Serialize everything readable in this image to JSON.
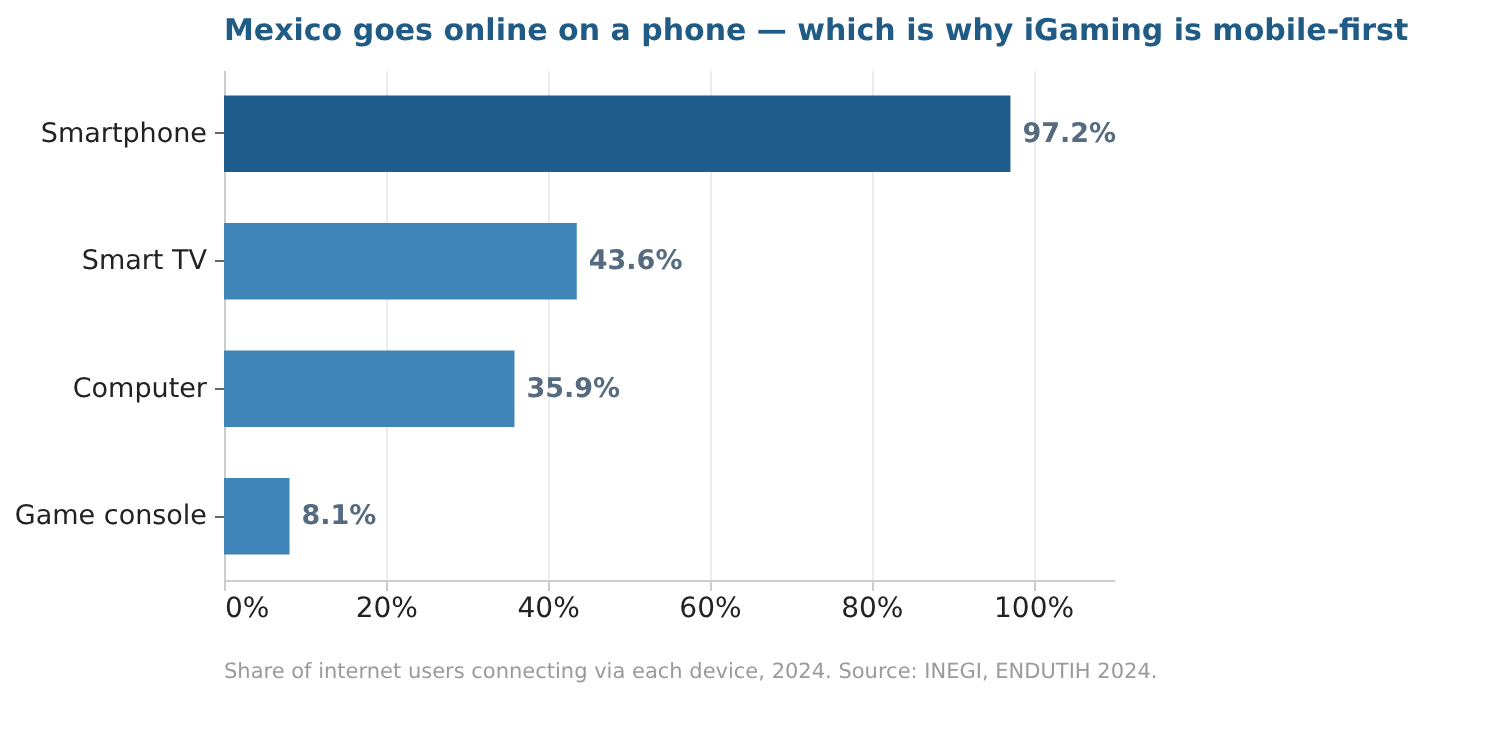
{
  "chart_data": {
    "type": "bar",
    "orientation": "horizontal",
    "title": "Mexico goes online on a phone — which is why iGaming is mobile-first",
    "categories": [
      "Smartphone",
      "Smart TV",
      "Computer",
      "Game console"
    ],
    "values": [
      97.2,
      43.6,
      35.9,
      8.1
    ],
    "colors": [
      "#1f5b8b",
      "#3f85b8",
      "#3f85b8",
      "#3f85b8"
    ],
    "value_labels": [
      "97.2%",
      "43.6%",
      "35.9%",
      "8.1%"
    ],
    "xlim": [
      0,
      110
    ],
    "xticks": [
      {
        "value": 0,
        "label": "0%"
      },
      {
        "value": 20,
        "label": "20%"
      },
      {
        "value": 40,
        "label": "40%"
      },
      {
        "value": 60,
        "label": "60%"
      },
      {
        "value": 80,
        "label": "80%"
      },
      {
        "value": 100,
        "label": "100%"
      }
    ],
    "grid": "x",
    "annotations": [
      "Share of internet users connecting via each device, 2024.  Source: INEGI, ENDUTIH 2024."
    ]
  }
}
